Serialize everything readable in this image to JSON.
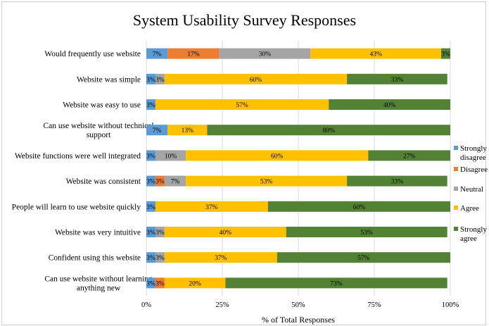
{
  "chart_data": {
    "type": "bar",
    "orientation": "horizontal",
    "stacked": true,
    "title": "System Usability Survey Responses",
    "xlabel": "% of Total Responses",
    "ylabel": "",
    "xlim": [
      0,
      100
    ],
    "x_ticks": [
      "0%",
      "25%",
      "50%",
      "75%",
      "100%"
    ],
    "grid": true,
    "legend_position": "right",
    "categories": [
      "Would frequently use website",
      "Website was simple",
      "Website was easy to use",
      "Can use website without technical support",
      "Website functions were well integrated",
      "Website was consistent",
      "People will learn to use website quickly",
      "Website was very intuitive",
      "Confident using this website",
      "Can use website without learning anything new"
    ],
    "series": [
      {
        "name": "Strongly disagree",
        "color": "#5b9bd5",
        "values": [
          7,
          3,
          3,
          7,
          3,
          3,
          3,
          3,
          3,
          3
        ]
      },
      {
        "name": "Disagree",
        "color": "#ed7d31",
        "values": [
          17,
          0,
          0,
          0,
          0,
          3,
          0,
          0,
          0,
          3
        ]
      },
      {
        "name": "Neutral",
        "color": "#a5a5a5",
        "values": [
          30,
          3,
          0,
          0,
          10,
          7,
          0,
          3,
          3,
          0
        ]
      },
      {
        "name": "Agree",
        "color": "#ffc000",
        "values": [
          43,
          60,
          57,
          13,
          60,
          53,
          37,
          40,
          37,
          20
        ]
      },
      {
        "name": "Strongly agree",
        "color": "#548235",
        "values": [
          3,
          33,
          40,
          80,
          27,
          33,
          60,
          53,
          57,
          73
        ]
      }
    ],
    "data_labels": [
      [
        "7%",
        "17%",
        "30%",
        "43%",
        "3%"
      ],
      [
        "3%",
        "",
        "3%",
        "60%",
        "33%"
      ],
      [
        "3%",
        "",
        "",
        "57%",
        "40%"
      ],
      [
        "7%",
        "",
        "",
        "13%",
        "80%"
      ],
      [
        "3%",
        "",
        "10%",
        "60%",
        "27%"
      ],
      [
        "3%",
        "3%",
        "7%",
        "53%",
        "33%"
      ],
      [
        "3%",
        "",
        "",
        "37%",
        "60%"
      ],
      [
        "3%",
        "",
        "3%",
        "40%",
        "53%"
      ],
      [
        "3%",
        "",
        "3%",
        "37%",
        "57%"
      ],
      [
        "3%",
        "3%",
        "",
        "20%",
        "73%"
      ]
    ]
  }
}
